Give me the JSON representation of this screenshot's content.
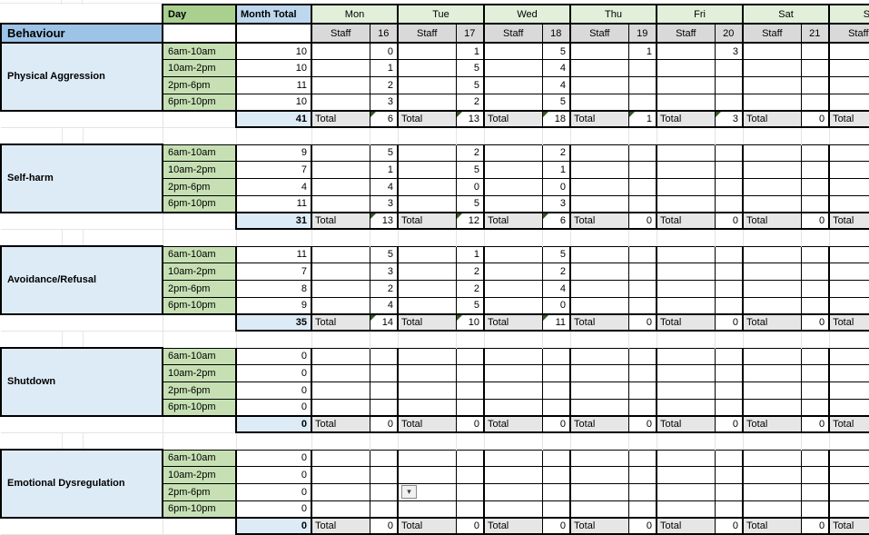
{
  "spreadsheet": {
    "corner": {
      "behaviour_label": "Behaviour"
    },
    "headers": {
      "day": "Day",
      "month_total": "Month Total",
      "staff": "Staff",
      "total": "Total",
      "days": [
        {
          "name": "Mon",
          "date": "16"
        },
        {
          "name": "Tue",
          "date": "17"
        },
        {
          "name": "Wed",
          "date": "18"
        },
        {
          "name": "Thu",
          "date": "19"
        },
        {
          "name": "Fri",
          "date": "20"
        },
        {
          "name": "Sat",
          "date": "21"
        },
        {
          "name": "Sun",
          "date": ""
        }
      ]
    },
    "icons": {
      "dropdown_arrow": "▾"
    },
    "sections": [
      {
        "label": "Physical Aggression",
        "rows": [
          {
            "slot": "6am-10am",
            "month_total": "10",
            "days": [
              "0",
              "1",
              "5",
              "1",
              "3",
              "",
              ""
            ]
          },
          {
            "slot": "10am-2pm",
            "month_total": "10",
            "days": [
              "1",
              "5",
              "4",
              "",
              "",
              "",
              ""
            ]
          },
          {
            "slot": "2pm-6pm",
            "month_total": "11",
            "days": [
              "2",
              "5",
              "4",
              "",
              "",
              "",
              ""
            ]
          },
          {
            "slot": "6pm-10pm",
            "month_total": "10",
            "days": [
              "3",
              "2",
              "5",
              "",
              "",
              "",
              ""
            ]
          }
        ],
        "month_sum": "41",
        "day_totals": [
          "6",
          "13",
          "18",
          "1",
          "3",
          "0",
          ""
        ]
      },
      {
        "label": "Self-harm",
        "rows": [
          {
            "slot": "6am-10am",
            "month_total": "9",
            "days": [
              "5",
              "2",
              "2",
              "",
              "",
              "",
              ""
            ]
          },
          {
            "slot": "10am-2pm",
            "month_total": "7",
            "days": [
              "1",
              "5",
              "1",
              "",
              "",
              "",
              ""
            ]
          },
          {
            "slot": "2pm-6pm",
            "month_total": "4",
            "days": [
              "4",
              "0",
              "0",
              "",
              "",
              "",
              ""
            ]
          },
          {
            "slot": "6pm-10pm",
            "month_total": "11",
            "days": [
              "3",
              "5",
              "3",
              "",
              "",
              "",
              ""
            ]
          }
        ],
        "month_sum": "31",
        "day_totals": [
          "13",
          "12",
          "6",
          "0",
          "0",
          "0",
          ""
        ]
      },
      {
        "label": "Avoidance/Refusal",
        "rows": [
          {
            "slot": "6am-10am",
            "month_total": "11",
            "days": [
              "5",
              "1",
              "5",
              "",
              "",
              "",
              ""
            ]
          },
          {
            "slot": "10am-2pm",
            "month_total": "7",
            "days": [
              "3",
              "2",
              "2",
              "",
              "",
              "",
              ""
            ]
          },
          {
            "slot": "2pm-6pm",
            "month_total": "8",
            "days": [
              "2",
              "2",
              "4",
              "",
              "",
              "",
              ""
            ]
          },
          {
            "slot": "6pm-10pm",
            "month_total": "9",
            "days": [
              "4",
              "5",
              "0",
              "",
              "",
              "",
              ""
            ]
          }
        ],
        "month_sum": "35",
        "day_totals": [
          "14",
          "10",
          "11",
          "0",
          "0",
          "0",
          ""
        ]
      },
      {
        "label": "Shutdown",
        "rows": [
          {
            "slot": "6am-10am",
            "month_total": "0",
            "days": [
              "",
              "",
              "",
              "",
              "",
              "",
              ""
            ]
          },
          {
            "slot": "10am-2pm",
            "month_total": "0",
            "days": [
              "",
              "",
              "",
              "",
              "",
              "",
              ""
            ]
          },
          {
            "slot": "2pm-6pm",
            "month_total": "0",
            "days": [
              "",
              "",
              "",
              "",
              "",
              "",
              ""
            ]
          },
          {
            "slot": "6pm-10pm",
            "month_total": "0",
            "days": [
              "",
              "",
              "",
              "",
              "",
              "",
              ""
            ]
          }
        ],
        "month_sum": "0",
        "day_totals": [
          "0",
          "0",
          "0",
          "0",
          "0",
          "0",
          ""
        ]
      },
      {
        "label": "Emotional Dysregulation",
        "rows": [
          {
            "slot": "6am-10am",
            "month_total": "0",
            "days": [
              "",
              "",
              "",
              "",
              "",
              "",
              ""
            ]
          },
          {
            "slot": "10am-2pm",
            "month_total": "0",
            "days": [
              "",
              "",
              "",
              "",
              "",
              "",
              ""
            ]
          },
          {
            "slot": "2pm-6pm",
            "month_total": "0",
            "days": [
              "",
              "",
              "",
              "",
              "",
              "",
              ""
            ]
          },
          {
            "slot": "6pm-10pm",
            "month_total": "0",
            "days": [
              "",
              "",
              "",
              "",
              "",
              "",
              ""
            ]
          }
        ],
        "month_sum": "0",
        "day_totals": [
          "0",
          "0",
          "0",
          "0",
          "0",
          "0",
          ""
        ],
        "dropdown": {
          "row_index": 2,
          "day_index": 1
        }
      }
    ],
    "colors": {
      "day_header_green": "#A9D08E",
      "time_slot_green": "#C6E0B4",
      "day_name_green": "#E2EFDA",
      "behaviour_blue": "#9DC3E6",
      "section_label_blue": "#DDEBF7",
      "month_total_header_blue": "#BDD7EE",
      "month_sum_blue": "#DDEBF7",
      "staff_gray": "#D9D9D9",
      "total_gray": "#E7E6E6",
      "flag_green": "#375623"
    }
  }
}
